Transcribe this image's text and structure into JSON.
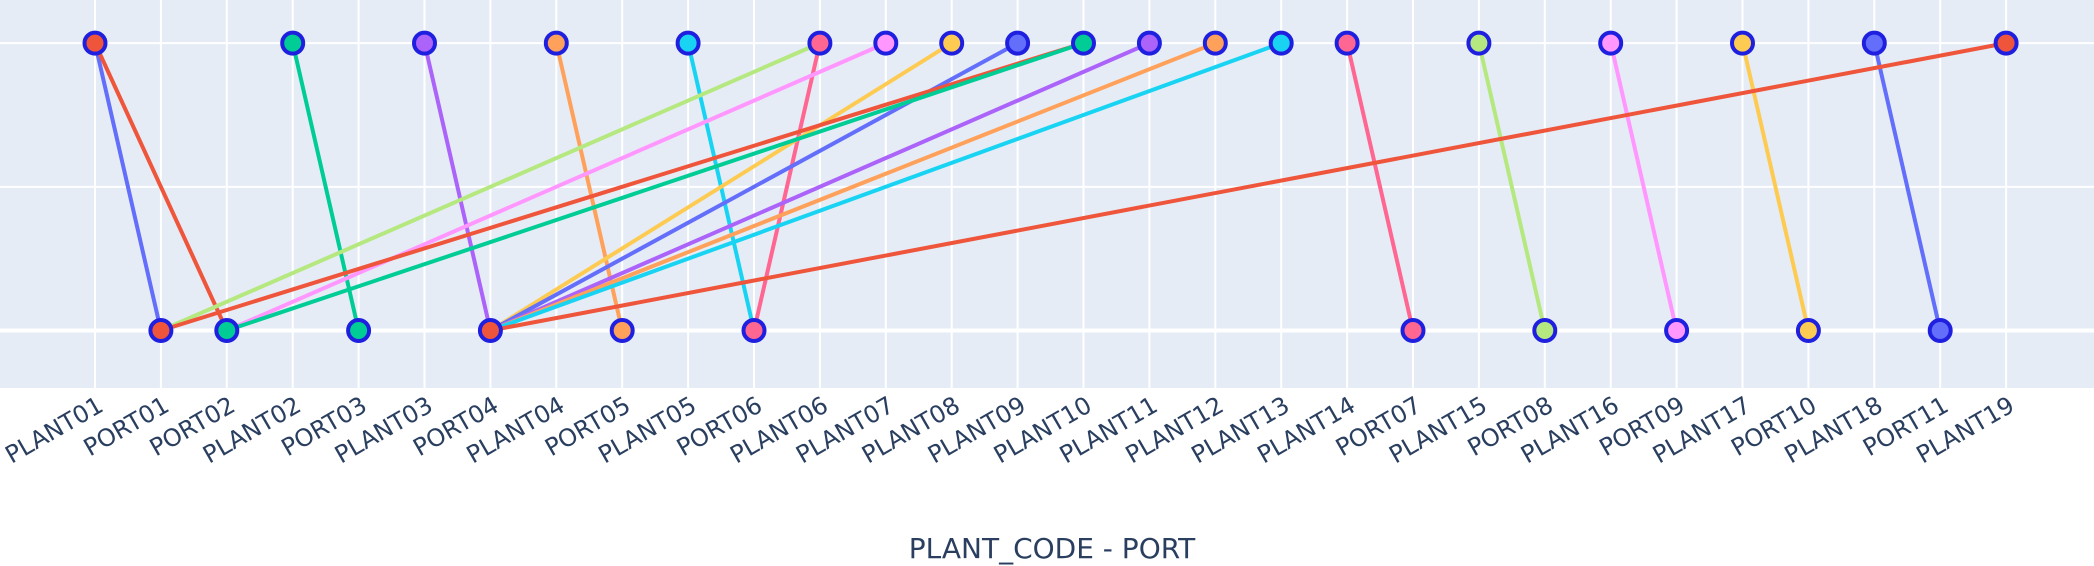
{
  "chart_data": {
    "type": "scatter",
    "xlabel": "PLANT_CODE - PORT",
    "categories": [
      "PLANT01",
      "PORT01",
      "PORT02",
      "PLANT02",
      "PORT03",
      "PLANT03",
      "PORT04",
      "PLANT04",
      "PORT05",
      "PLANT05",
      "PORT06",
      "PLANT06",
      "PLANT07",
      "PLANT08",
      "PLANT09",
      "PLANT10",
      "PLANT11",
      "PLANT12",
      "PLANT13",
      "PLANT14",
      "PORT07",
      "PLANT15",
      "PORT08",
      "PLANT16",
      "PORT09",
      "PLANT17",
      "PORT10",
      "PLANT18",
      "PORT11",
      "PLANT19"
    ],
    "levels": {
      "plant": 1,
      "port": 0
    },
    "ylim": [
      -0.2,
      1.15
    ],
    "grid": true,
    "plot_bg": "#e5ecf6",
    "grid_color": "#ffffff",
    "marker_outline": "#1f1fdf",
    "links": [
      {
        "plant": "PLANT01",
        "port": "PORT01",
        "color": "#636efa"
      },
      {
        "plant": "PLANT01",
        "port": "PORT02",
        "color": "#ef553b"
      },
      {
        "plant": "PLANT02",
        "port": "PORT03",
        "color": "#00cc96"
      },
      {
        "plant": "PLANT03",
        "port": "PORT04",
        "color": "#ab63fa"
      },
      {
        "plant": "PLANT04",
        "port": "PORT05",
        "color": "#ffa15a"
      },
      {
        "plant": "PLANT05",
        "port": "PORT06",
        "color": "#19d3f3"
      },
      {
        "plant": "PLANT06",
        "port": "PORT06",
        "color": "#ff6692"
      },
      {
        "plant": "PLANT06",
        "port": "PORT01",
        "color": "#b6e880"
      },
      {
        "plant": "PLANT07",
        "port": "PORT02",
        "color": "#ff97ff"
      },
      {
        "plant": "PLANT08",
        "port": "PORT04",
        "color": "#fecb52"
      },
      {
        "plant": "PLANT09",
        "port": "PORT04",
        "color": "#636efa"
      },
      {
        "plant": "PLANT10",
        "port": "PORT01",
        "color": "#ef553b"
      },
      {
        "plant": "PLANT10",
        "port": "PORT02",
        "color": "#00cc96"
      },
      {
        "plant": "PLANT11",
        "port": "PORT04",
        "color": "#ab63fa"
      },
      {
        "plant": "PLANT12",
        "port": "PORT04",
        "color": "#ffa15a"
      },
      {
        "plant": "PLANT13",
        "port": "PORT04",
        "color": "#19d3f3"
      },
      {
        "plant": "PLANT14",
        "port": "PORT07",
        "color": "#ff6692"
      },
      {
        "plant": "PLANT15",
        "port": "PORT08",
        "color": "#b6e880"
      },
      {
        "plant": "PLANT16",
        "port": "PORT09",
        "color": "#ff97ff"
      },
      {
        "plant": "PLANT17",
        "port": "PORT10",
        "color": "#fecb52"
      },
      {
        "plant": "PLANT18",
        "port": "PORT11",
        "color": "#636efa"
      },
      {
        "plant": "PLANT19",
        "port": "PORT04",
        "color": "#ef553b"
      }
    ],
    "points": [
      {
        "name": "PLANT01",
        "level": "plant",
        "fill": "#ef553b"
      },
      {
        "name": "PORT01",
        "level": "port",
        "fill": "#ef553b"
      },
      {
        "name": "PORT02",
        "level": "port",
        "fill": "#00cc96"
      },
      {
        "name": "PLANT02",
        "level": "plant",
        "fill": "#00cc96"
      },
      {
        "name": "PORT03",
        "level": "port",
        "fill": "#00cc96"
      },
      {
        "name": "PLANT03",
        "level": "plant",
        "fill": "#ab63fa"
      },
      {
        "name": "PORT04",
        "level": "port",
        "fill": "#ef553b"
      },
      {
        "name": "PLANT04",
        "level": "plant",
        "fill": "#ffa15a"
      },
      {
        "name": "PORT05",
        "level": "port",
        "fill": "#ffa15a"
      },
      {
        "name": "PLANT05",
        "level": "plant",
        "fill": "#19d3f3"
      },
      {
        "name": "PORT06",
        "level": "port",
        "fill": "#ff6692"
      },
      {
        "name": "PLANT06",
        "level": "plant",
        "fill": "#ff6692"
      },
      {
        "name": "PLANT07",
        "level": "plant",
        "fill": "#ff97ff"
      },
      {
        "name": "PLANT08",
        "level": "plant",
        "fill": "#fecb52"
      },
      {
        "name": "PLANT09",
        "level": "plant",
        "fill": "#636efa"
      },
      {
        "name": "PLANT10",
        "level": "plant",
        "fill": "#00cc96"
      },
      {
        "name": "PLANT11",
        "level": "plant",
        "fill": "#ab63fa"
      },
      {
        "name": "PLANT12",
        "level": "plant",
        "fill": "#ffa15a"
      },
      {
        "name": "PLANT13",
        "level": "plant",
        "fill": "#19d3f3"
      },
      {
        "name": "PLANT14",
        "level": "plant",
        "fill": "#ff6692"
      },
      {
        "name": "PORT07",
        "level": "port",
        "fill": "#ff6692"
      },
      {
        "name": "PLANT15",
        "level": "plant",
        "fill": "#b6e880"
      },
      {
        "name": "PORT08",
        "level": "port",
        "fill": "#b6e880"
      },
      {
        "name": "PLANT16",
        "level": "plant",
        "fill": "#ff97ff"
      },
      {
        "name": "PORT09",
        "level": "port",
        "fill": "#ff97ff"
      },
      {
        "name": "PLANT17",
        "level": "plant",
        "fill": "#fecb52"
      },
      {
        "name": "PORT10",
        "level": "port",
        "fill": "#fecb52"
      },
      {
        "name": "PLANT18",
        "level": "plant",
        "fill": "#636efa"
      },
      {
        "name": "PORT11",
        "level": "port",
        "fill": "#636efa"
      },
      {
        "name": "PLANT19",
        "level": "plant",
        "fill": "#ef553b"
      }
    ]
  }
}
